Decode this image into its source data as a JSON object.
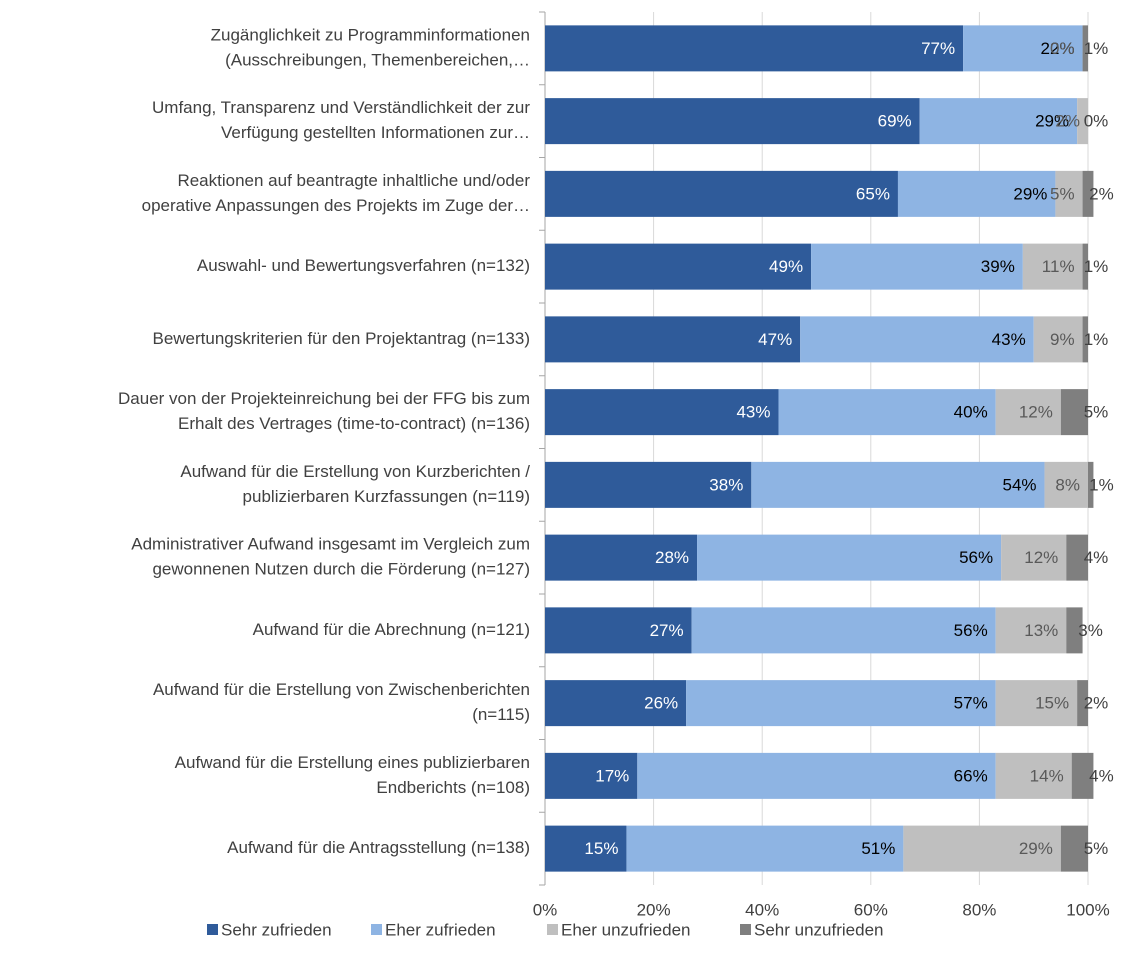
{
  "chart_data": {
    "type": "stacked_barh",
    "categories": [
      [
        "Zugänglichkeit zu Programminformationen",
        "(Ausschreibungen, Themenbereichen,…"
      ],
      [
        "Umfang, Transparenz und Verständlichkeit der zur",
        "Verfügung gestellten Informationen zur…"
      ],
      [
        "Reaktionen auf beantragte inhaltliche und/oder",
        "operative Anpassungen des Projekts im Zuge der…"
      ],
      [
        "Auswahl- und Bewertungsverfahren (n=132)"
      ],
      [
        "Bewertungskriterien für den Projektantrag (n=133)"
      ],
      [
        "Dauer von der Projekteinreichung bei der FFG bis zum",
        "Erhalt des Vertrages (time-to-contract) (n=136)"
      ],
      [
        "Aufwand für die Erstellung von Kurzberichten /",
        "publizierbaren Kurzfassungen (n=119)"
      ],
      [
        "Administrativer Aufwand insgesamt im Vergleich zum",
        "gewonnenen Nutzen durch die Förderung (n=127)"
      ],
      [
        "Aufwand für die Abrechnung (n=121)"
      ],
      [
        "Aufwand für die Erstellung von Zwischenberichten",
        "(n=115)"
      ],
      [
        "Aufwand für die Erstellung eines publizierbaren",
        "Endberichts (n=108)"
      ],
      [
        "Aufwand für die Antragsstellung (n=138)"
      ]
    ],
    "series": [
      {
        "name": "Sehr zufrieden",
        "color": "#2f5b9a",
        "label_color": "#ffffff",
        "values": [
          77,
          69,
          65,
          49,
          47,
          43,
          38,
          28,
          27,
          26,
          17,
          15
        ],
        "value_labels": [
          "77%",
          "69%",
          "65%",
          "49%",
          "47%",
          "43%",
          "38%",
          "28%",
          "27%",
          "26%",
          "17%",
          "15%"
        ]
      },
      {
        "name": "Eher zufrieden",
        "color": "#8eb4e3",
        "label_color": "#000000",
        "values": [
          22,
          29,
          29,
          39,
          43,
          40,
          54,
          56,
          56,
          57,
          66,
          51
        ],
        "value_labels": [
          "22%",
          "29%",
          "29%",
          "39%",
          "43%",
          "40%",
          "54%",
          "56%",
          "56%",
          "57%",
          "66%",
          "51%"
        ]
      },
      {
        "name": "Eher unzufrieden",
        "color": "#bfbfbf",
        "label_color": "#595959",
        "values": [
          0,
          2,
          5,
          11,
          9,
          12,
          8,
          12,
          13,
          15,
          14,
          29
        ],
        "value_labels": [
          "0%",
          "2%",
          "5%",
          "11%",
          "9%",
          "12%",
          "8%",
          "12%",
          "13%",
          "15%",
          "14%",
          "29%"
        ]
      },
      {
        "name": "Sehr unzufrieden",
        "color": "#7f7f7f",
        "label_color": "#404040",
        "values": [
          1,
          0,
          2,
          1,
          1,
          5,
          1,
          4,
          3,
          2,
          4,
          5
        ],
        "value_labels": [
          "1%",
          "0%",
          "2%",
          "1%",
          "1%",
          "5%",
          "1%",
          "4%",
          "3%",
          "2%",
          "4%",
          "5%"
        ]
      }
    ],
    "xlim": [
      0,
      100
    ],
    "xticks": [
      {
        "value": 0,
        "label": "0%"
      },
      {
        "value": 20,
        "label": "20%"
      },
      {
        "value": 40,
        "label": "40%"
      },
      {
        "value": 60,
        "label": "60%"
      },
      {
        "value": 80,
        "label": "80%"
      },
      {
        "value": 100,
        "label": "100%"
      }
    ],
    "grid": true,
    "legend": "bottom"
  }
}
